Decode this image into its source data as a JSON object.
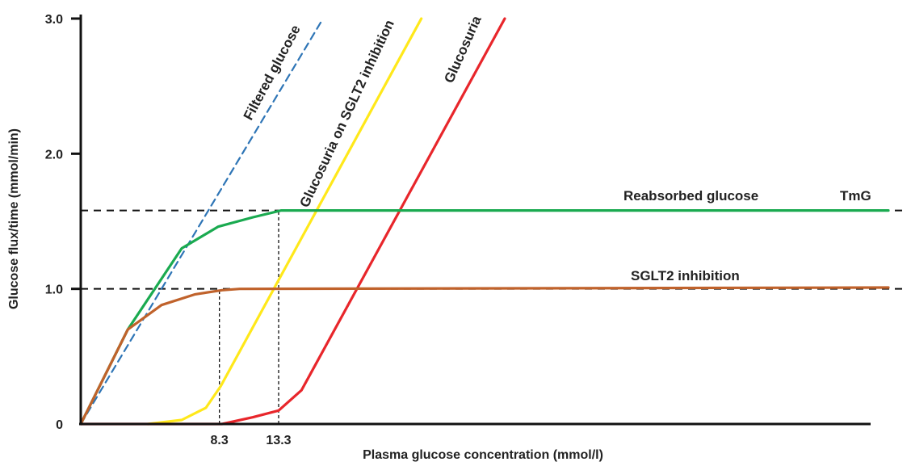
{
  "chart_data": {
    "type": "line",
    "xlabel": "Plasma glucose concentration (mmol/l)",
    "ylabel": "Glucose flux/time (mmol/min)",
    "ylim": [
      0,
      3.0
    ],
    "xlim": [
      0,
      60
    ],
    "y_ticks": [
      {
        "value": 0,
        "label": "0"
      },
      {
        "value": 1.0,
        "label": "1.0"
      },
      {
        "value": 2.0,
        "label": "2.0"
      },
      {
        "value": 3.0,
        "label": "3.0"
      }
    ],
    "x_ticks": [
      {
        "value": 10.3,
        "label": "8.3"
      },
      {
        "value": 14.7,
        "label": "13.3"
      }
    ],
    "reference_lines": [
      {
        "label": "TmG",
        "y": 1.58
      },
      {
        "label": "SGLT2 inhibition",
        "y": 1.0
      }
    ],
    "series": [
      {
        "name": "Filtered glucose",
        "color": "#2e75b6",
        "dashed": true,
        "x": [
          0,
          18
        ],
        "y": [
          0,
          3.0
        ]
      },
      {
        "name": "Reabsorbed glucose",
        "color": "#1aaa50",
        "dashed": false,
        "x": [
          0,
          3.5,
          7.5,
          10.2,
          12.8,
          14.9,
          60
        ],
        "y": [
          0,
          0.7,
          1.3,
          1.46,
          1.53,
          1.58,
          1.58
        ]
      },
      {
        "name": "SGLT2 inhibition",
        "color": "#c0622b",
        "dashed": false,
        "x": [
          0,
          3.5,
          6.0,
          8.5,
          10.5,
          11.8,
          60
        ],
        "y": [
          0,
          0.7,
          0.88,
          0.96,
          0.99,
          1.0,
          1.01
        ]
      },
      {
        "name": "Glucosuria on SGLT2 inhibition",
        "color": "#ffe81a",
        "dashed": false,
        "x": [
          5,
          7.5,
          9.3,
          10.4,
          25.3
        ],
        "y": [
          0,
          0.03,
          0.12,
          0.28,
          3.0
        ]
      },
      {
        "name": "Glucosuria",
        "color": "#e8262b",
        "dashed": false,
        "x": [
          0,
          5,
          10.5,
          12.8,
          14.7,
          16.4,
          31.5
        ],
        "y": [
          0,
          0,
          0,
          0.05,
          0.1,
          0.25,
          3.0
        ]
      }
    ],
    "annotations": [
      "Filtered glucose",
      "Glucosuria on SGLT2 inhibition",
      "Glucosuria",
      "Reabsorbed glucose",
      "TmG",
      "SGLT2 inhibition"
    ],
    "grid": false,
    "legend": "none"
  }
}
